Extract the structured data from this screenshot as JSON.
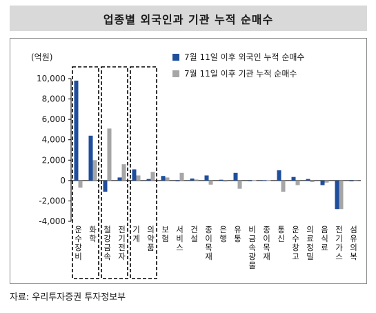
{
  "title": "업종별 외국인과 기관 누적 순매수",
  "source": "자료: 우리투자증권 투자정보부",
  "chart_data": {
    "type": "bar",
    "title": "업종별 외국인과 기관 누적 순매수",
    "unit_label": "(억원)",
    "ylim": [
      -4000,
      10000
    ],
    "yticks": [
      -4000,
      -2000,
      0,
      2000,
      4000,
      6000,
      8000,
      10000
    ],
    "ytick_labels": [
      "-4,000",
      "-2,000",
      "0",
      "2,000",
      "4,000",
      "6,000",
      "8,000",
      "10,000"
    ],
    "categories": [
      "운수장비",
      "화학",
      "철강금속",
      "전기전자",
      "기계",
      "의약품",
      "보험",
      "서비스",
      "건설",
      "종이목재",
      "은행",
      "유통",
      "비금속광물",
      "종이목재",
      "통신",
      "운수창고",
      "의료정밀",
      "음식료",
      "전기가스",
      "섬유의복"
    ],
    "category_labels": [
      "운수장비",
      "화학",
      "철강금속",
      "전기전자",
      "기계",
      "의약품",
      "보험",
      "서비스",
      "건설",
      "종이목재",
      "은행",
      "유통",
      "비금속광물",
      "종이목재",
      "통신",
      "운수창고",
      "의료정밀",
      "음식료",
      "전기가스",
      "섬유의복"
    ],
    "series": [
      {
        "name": "7월 11일 이후 외국인 누적 순매수",
        "color": "#1f4e9c",
        "values": [
          9800,
          4400,
          -1100,
          300,
          1100,
          150,
          450,
          -80,
          200,
          500,
          80,
          750,
          -50,
          30,
          1000,
          350,
          150,
          -450,
          -2800,
          -80
        ]
      },
      {
        "name": "7월 11일 이후 기관 누적 순매수",
        "color": "#a6a6a6",
        "values": [
          -700,
          2000,
          5100,
          1600,
          500,
          850,
          300,
          750,
          100,
          -400,
          -100,
          -800,
          20,
          20,
          -1100,
          -450,
          -150,
          -200,
          -2800,
          -40
        ]
      }
    ],
    "highlight_groups": [
      [
        0,
        1
      ],
      [
        2,
        3
      ],
      [
        4,
        5
      ]
    ],
    "legend_position": "top-right",
    "grid": false
  }
}
